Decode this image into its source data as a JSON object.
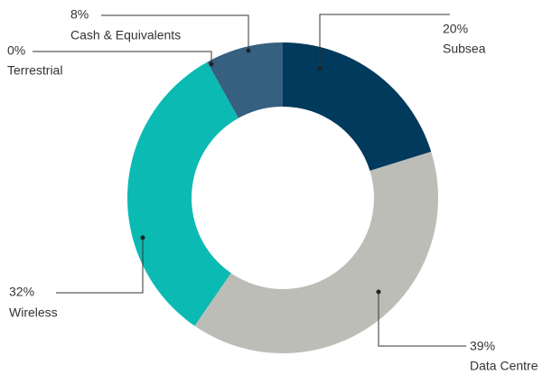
{
  "chart_data": {
    "type": "donut",
    "categories": [
      "Subsea",
      "Data Centre",
      "Wireless",
      "Terrestrial",
      "Cash & Equivalents"
    ],
    "values": [
      20,
      39,
      32,
      0,
      8
    ],
    "value_labels": [
      "20%",
      "39%",
      "32%",
      "0%",
      "8%"
    ],
    "colors": [
      "#003a5c",
      "#bdbdb7",
      "#0bbab3",
      "#0bbab3",
      "#356080"
    ]
  }
}
